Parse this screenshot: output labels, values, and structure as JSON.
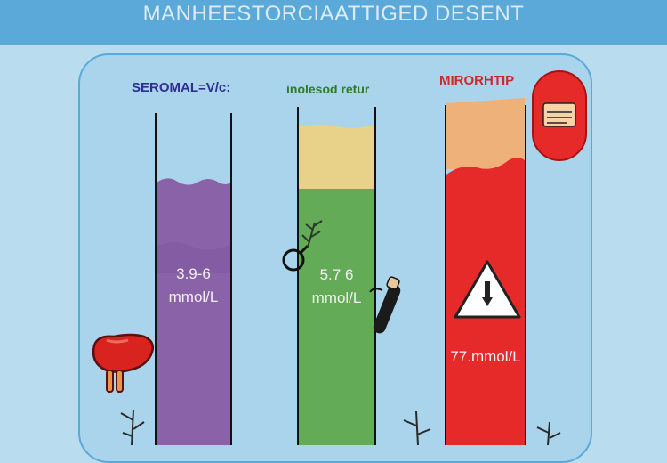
{
  "header": {
    "title": "MANHEESTORCIAATTIGED DESENT"
  },
  "columns": [
    {
      "label": "SEROMAL=V/c:",
      "label_color": "#2e2f8f",
      "fill_color": "#8a62a8",
      "value": "3.9-6",
      "unit": "mmol/L"
    },
    {
      "label": "inolesod retur",
      "label_color": "#2f7a2f",
      "fill_color": "#64ab57",
      "top_fill_color": "#e8d28a",
      "value": "5.7 6",
      "unit": "mmol/L"
    },
    {
      "label": "MIRORHTIP",
      "label_color": "#cc2a2a",
      "fill_color": "#e62a2a",
      "top_fill_color": "#efb17a",
      "value": "77.mmol/L"
    }
  ],
  "colors": {
    "banner": "#5aa9d8",
    "background": "#b9dcee",
    "panel": "#aad3ec",
    "organ": "#d8231f",
    "warning_fill": "#ffffff"
  },
  "icons": [
    "liver-icon",
    "magnifier-icon",
    "syringe-icon",
    "warning-triangle-icon",
    "document-badge-icon",
    "plant-sprig-icon"
  ]
}
